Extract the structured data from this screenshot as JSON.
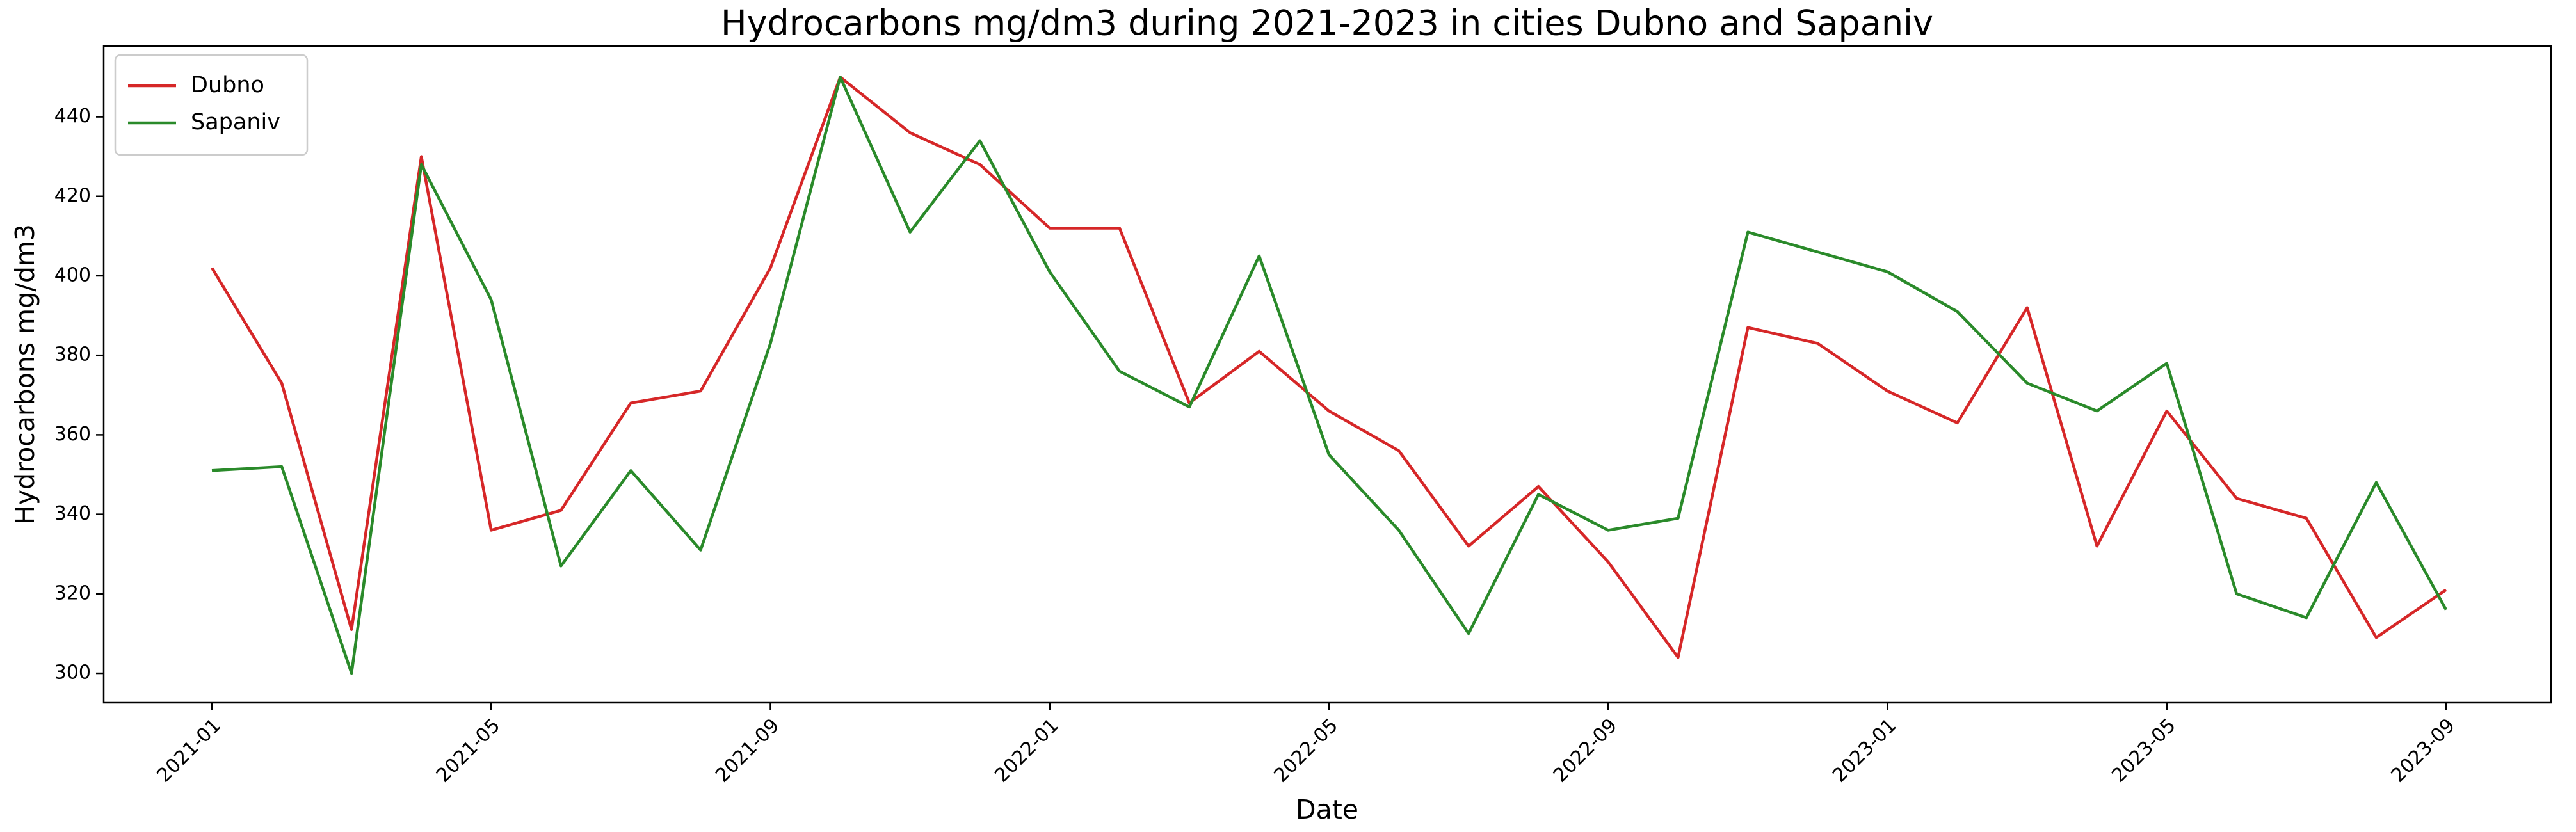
{
  "chart_data": {
    "type": "line",
    "title": "Hydrocarbons mg/dm3 during 2021-2023 in cities Dubno and Sapaniv",
    "x_label": "Date",
    "y_label": "Hydrocarbons mg/dm3",
    "x": [
      "2021-01",
      "2021-02",
      "2021-03",
      "2021-04",
      "2021-05",
      "2021-06",
      "2021-07",
      "2021-08",
      "2021-09",
      "2021-10",
      "2021-11",
      "2021-12",
      "2022-01",
      "2022-02",
      "2022-03",
      "2022-04",
      "2022-05",
      "2022-06",
      "2022-07",
      "2022-08",
      "2022-09",
      "2022-10",
      "2022-11",
      "2022-12",
      "2023-01",
      "2023-02",
      "2023-03",
      "2023-04",
      "2023-05",
      "2023-06",
      "2023-07",
      "2023-08",
      "2023-09"
    ],
    "series": [
      {
        "name": "Dubno",
        "color": "#d62728",
        "values": [
          402,
          373,
          311,
          430,
          336,
          341,
          368,
          371,
          402,
          450,
          436,
          428,
          412,
          412,
          368,
          381,
          366,
          356,
          332,
          347,
          328,
          304,
          387,
          383,
          371,
          363,
          392,
          332,
          366,
          344,
          339,
          309,
          321
        ]
      },
      {
        "name": "Sapaniv",
        "color": "#2a8a2a",
        "values": [
          351,
          352,
          300,
          428,
          394,
          327,
          351,
          331,
          383,
          450,
          411,
          434,
          401,
          376,
          367,
          405,
          355,
          336,
          310,
          345,
          336,
          339,
          411,
          406,
          401,
          391,
          373,
          366,
          378,
          320,
          314,
          348,
          316
        ]
      }
    ],
    "xticks": [
      "2021-01",
      "2021-05",
      "2021-09",
      "2022-01",
      "2022-05",
      "2022-09",
      "2023-01",
      "2023-05",
      "2023-09"
    ],
    "ylim": [
      292.6,
      457.8
    ],
    "yticks": [
      300,
      320,
      340,
      360,
      380,
      400,
      420,
      440
    ],
    "legend": "upper left",
    "grid": false
  }
}
